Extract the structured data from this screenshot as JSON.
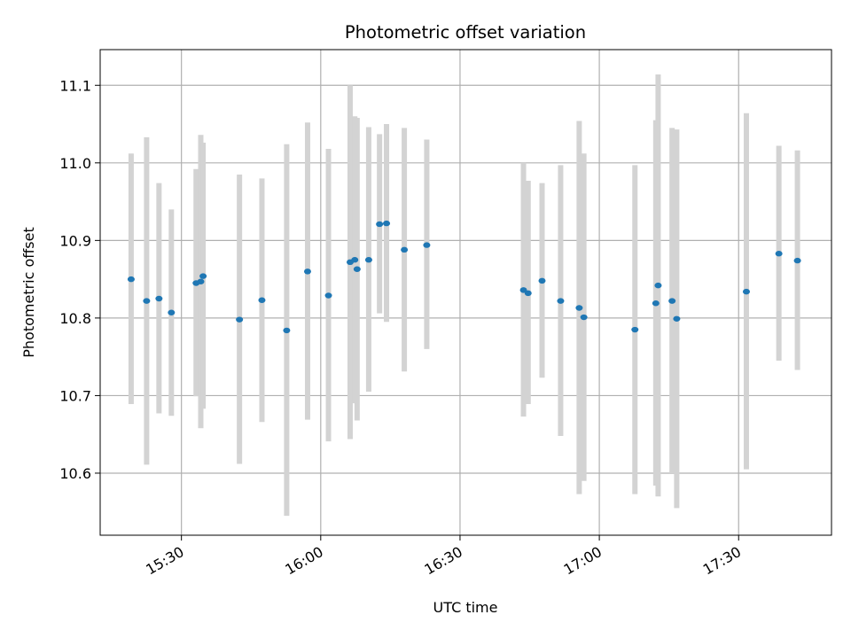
{
  "chart_data": {
    "type": "scatter",
    "title": "Photometric offset variation",
    "xlabel": "UTC time",
    "ylabel": "Photometric offset",
    "x_ticks": [
      "15:30",
      "16:00",
      "16:30",
      "17:00",
      "17:30"
    ],
    "x_tick_minutes": [
      930,
      960,
      990,
      1020,
      1050
    ],
    "x_range_minutes": [
      912.5,
      1070.0
    ],
    "y_ticks": [
      "10.6",
      "10.7",
      "10.8",
      "10.9",
      "11.0",
      "11.1"
    ],
    "y_tick_values": [
      10.6,
      10.7,
      10.8,
      10.9,
      11.0,
      11.1
    ],
    "ylim": [
      10.52,
      11.146
    ],
    "grid": true,
    "colors": {
      "point": "#1f77b4",
      "errorbar": "#d3d3d3",
      "grid": "#b0b0b0"
    },
    "points": [
      {
        "x": "15:19:10",
        "y": 10.85,
        "lo": 10.689,
        "hi": 11.012
      },
      {
        "x": "15:22:30",
        "y": 10.822,
        "lo": 10.611,
        "hi": 11.033
      },
      {
        "x": "15:25:10",
        "y": 10.825,
        "lo": 10.677,
        "hi": 10.974
      },
      {
        "x": "15:27:50",
        "y": 10.807,
        "lo": 10.674,
        "hi": 10.94
      },
      {
        "x": "15:33:10",
        "y": 10.845,
        "lo": 10.699,
        "hi": 10.992
      },
      {
        "x": "15:34:10",
        "y": 10.847,
        "lo": 10.658,
        "hi": 11.036
      },
      {
        "x": "15:34:40",
        "y": 10.854,
        "lo": 10.683,
        "hi": 11.026
      },
      {
        "x": "15:42:30",
        "y": 10.798,
        "lo": 10.612,
        "hi": 10.985
      },
      {
        "x": "15:47:20",
        "y": 10.823,
        "lo": 10.666,
        "hi": 10.98
      },
      {
        "x": "15:52:40",
        "y": 10.784,
        "lo": 10.545,
        "hi": 11.024
      },
      {
        "x": "15:57:10",
        "y": 10.86,
        "lo": 10.669,
        "hi": 11.052
      },
      {
        "x": "16:01:40",
        "y": 10.829,
        "lo": 10.641,
        "hi": 11.018
      },
      {
        "x": "16:06:20",
        "y": 10.872,
        "lo": 10.644,
        "hi": 11.1
      },
      {
        "x": "16:07:20",
        "y": 10.875,
        "lo": 10.69,
        "hi": 11.06
      },
      {
        "x": "16:07:50",
        "y": 10.863,
        "lo": 10.668,
        "hi": 11.058
      },
      {
        "x": "16:10:20",
        "y": 10.875,
        "lo": 10.705,
        "hi": 11.046
      },
      {
        "x": "16:12:40",
        "y": 10.921,
        "lo": 10.806,
        "hi": 11.037
      },
      {
        "x": "16:14:10",
        "y": 10.922,
        "lo": 10.795,
        "hi": 11.05
      },
      {
        "x": "16:18:00",
        "y": 10.888,
        "lo": 10.731,
        "hi": 11.045
      },
      {
        "x": "16:22:50",
        "y": 10.894,
        "lo": 10.76,
        "hi": 11.03
      },
      {
        "x": "16:43:40",
        "y": 10.836,
        "lo": 10.673,
        "hi": 11.0
      },
      {
        "x": "16:44:40",
        "y": 10.832,
        "lo": 10.689,
        "hi": 10.977
      },
      {
        "x": "16:47:40",
        "y": 10.848,
        "lo": 10.723,
        "hi": 10.974
      },
      {
        "x": "16:51:40",
        "y": 10.822,
        "lo": 10.648,
        "hi": 10.997
      },
      {
        "x": "16:55:40",
        "y": 10.813,
        "lo": 10.573,
        "hi": 11.054
      },
      {
        "x": "16:56:40",
        "y": 10.801,
        "lo": 10.59,
        "hi": 11.012
      },
      {
        "x": "17:07:40",
        "y": 10.785,
        "lo": 10.573,
        "hi": 10.997
      },
      {
        "x": "17:12:10",
        "y": 10.819,
        "lo": 10.584,
        "hi": 11.055
      },
      {
        "x": "17:12:40",
        "y": 10.842,
        "lo": 10.57,
        "hi": 11.114
      },
      {
        "x": "17:15:40",
        "y": 10.822,
        "lo": 10.6,
        "hi": 11.045
      },
      {
        "x": "17:16:40",
        "y": 10.799,
        "lo": 10.555,
        "hi": 11.043
      },
      {
        "x": "17:31:40",
        "y": 10.834,
        "lo": 10.605,
        "hi": 11.064
      },
      {
        "x": "17:38:40",
        "y": 10.883,
        "lo": 10.745,
        "hi": 11.022
      },
      {
        "x": "17:42:40",
        "y": 10.874,
        "lo": 10.733,
        "hi": 11.016
      }
    ]
  }
}
